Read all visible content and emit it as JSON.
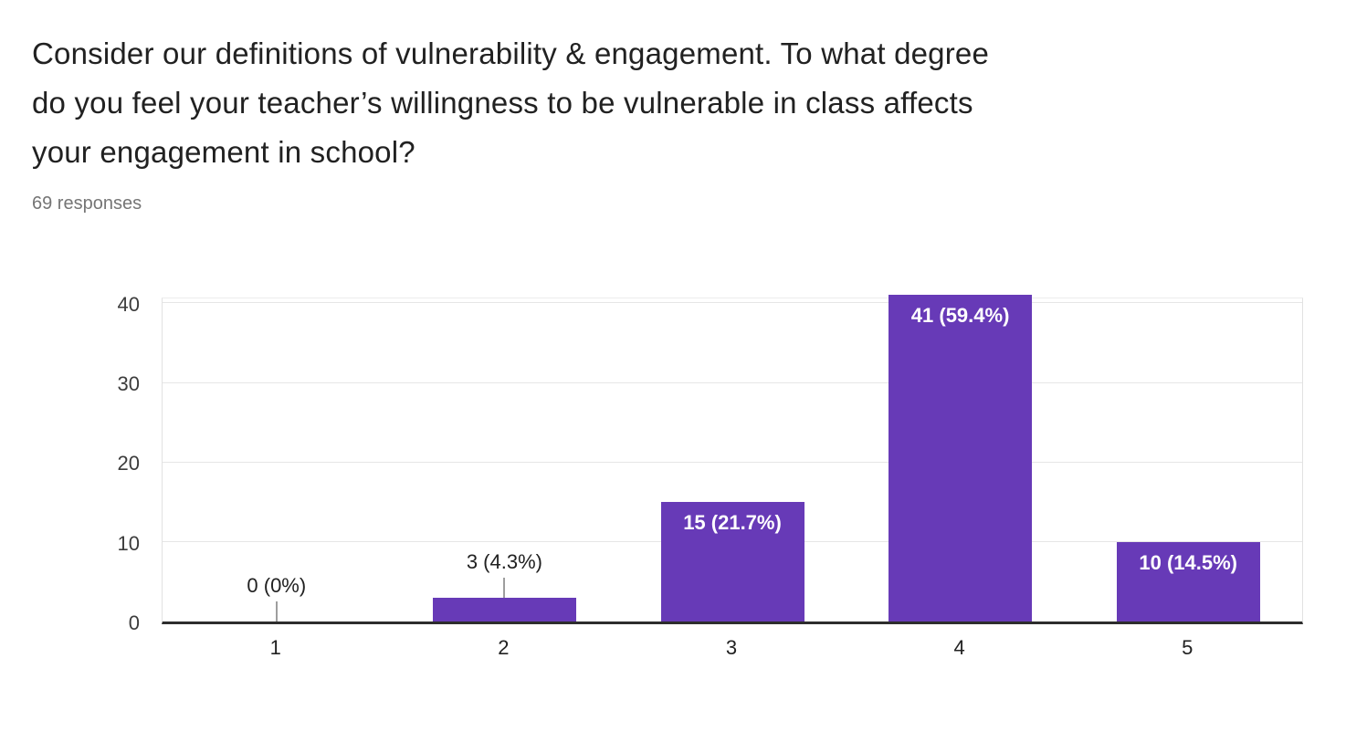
{
  "header": {
    "title_lines": [
      "Consider our definitions of vulnerability & engagement. To what degree",
      "do you feel your teacher’s willingness to be vulnerable in class affects",
      "your engagement in school?"
    ],
    "responses_label": "69 responses"
  },
  "chart_data": {
    "type": "bar",
    "title": "Consider our definitions of vulnerability & engagement. To what degree do you feel your teacher’s willingness to be vulnerable in class affects your engagement in school?",
    "subtitle": "69 responses",
    "total_responses": 69,
    "categories": [
      "1",
      "2",
      "3",
      "4",
      "5"
    ],
    "values": [
      0,
      3,
      15,
      41,
      10
    ],
    "percentages": [
      0,
      4.3,
      21.7,
      59.4,
      14.5
    ],
    "bar_labels": [
      "0 (0%)",
      "3 (4.3%)",
      "15 (21.7%)",
      "41 (59.4%)",
      "10 (14.5%)"
    ],
    "label_placement": [
      "above",
      "above",
      "inside",
      "inside",
      "inside"
    ],
    "xlabel": "",
    "ylabel": "",
    "y_ticks": [
      0,
      10,
      20,
      30,
      40
    ],
    "ylim": [
      0,
      41
    ],
    "grid": true,
    "legend_position": "none",
    "colors": {
      "bar": "#673ab7",
      "label_inside": "#ffffff",
      "label_outside": "#212121",
      "gridline": "#e6e6e6",
      "axis_line": "#2d2d2d",
      "callout_line": "#9e9e9e",
      "y_tick_label": "#3c3c3c",
      "x_tick_label": "#212121",
      "title": "#212121",
      "subtitle": "#757575"
    }
  }
}
